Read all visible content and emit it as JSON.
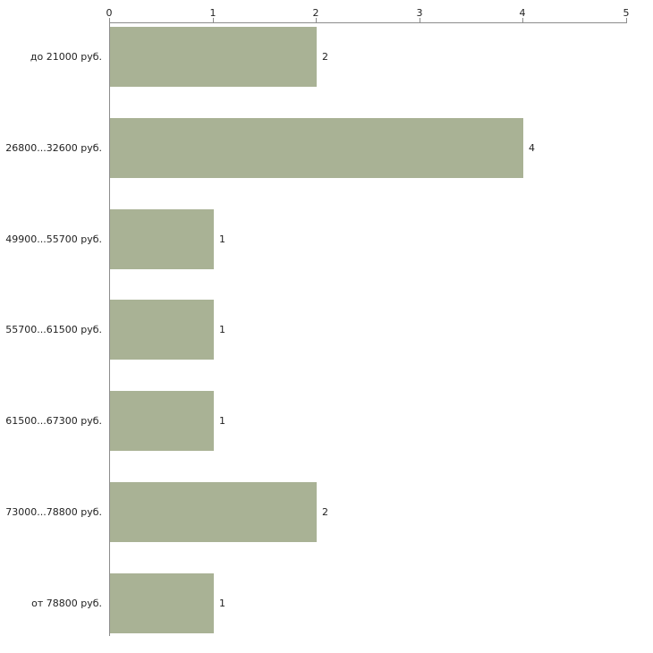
{
  "chart_data": {
    "type": "bar",
    "orientation": "horizontal",
    "title": "",
    "xlabel": "",
    "ylabel": "",
    "categories": [
      "до 21000 руб.",
      "26800...32600 руб.",
      "49900...55700 руб.",
      "55700...61500 руб.",
      "61500...67300 руб.",
      "73000...78800 руб.",
      "от 78800 руб."
    ],
    "values": [
      2,
      4,
      1,
      1,
      1,
      2,
      1
    ],
    "value_labels": [
      "2",
      "4",
      "1",
      "1",
      "1",
      "2",
      "1"
    ],
    "x_ticks": [
      "0",
      "1",
      "2",
      "3",
      "4",
      "5"
    ],
    "xlim": [
      0,
      5
    ],
    "grid": false,
    "legend": "none",
    "bar_color": "#a9b295",
    "axis_color": "#8c8c8c",
    "text_color": "#222222"
  }
}
